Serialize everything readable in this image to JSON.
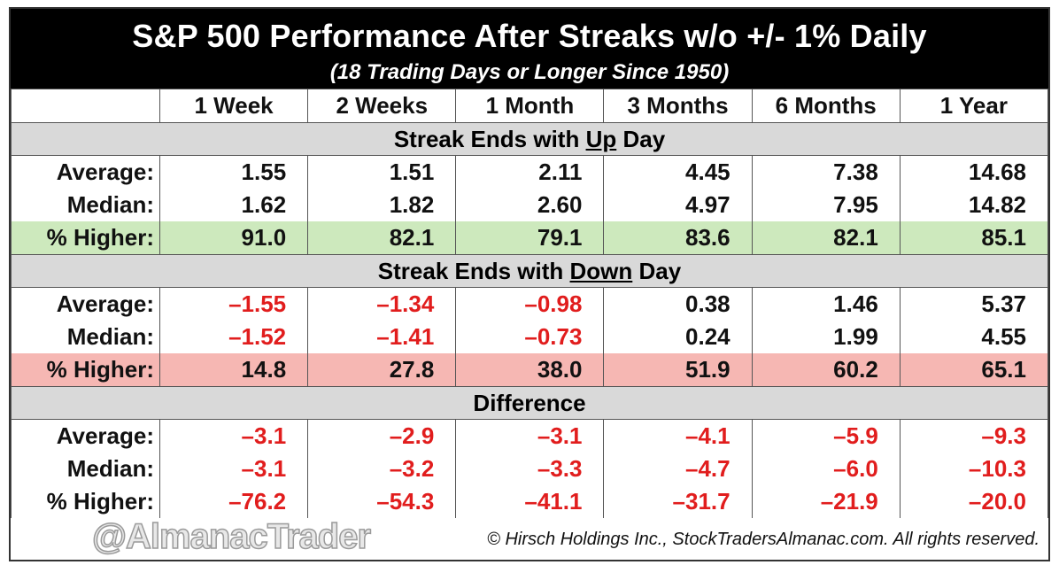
{
  "header": {
    "title": "S&P 500 Performance After Streaks w/o +/- 1% Daily",
    "subtitle": "(18 Trading Days or Longer Since 1950)"
  },
  "columns": [
    "1 Week",
    "2 Weeks",
    "1 Month",
    "3 Months",
    "6 Months",
    "1 Year"
  ],
  "sections": [
    {
      "title_pre": "Streak Ends with ",
      "title_under": "Up",
      "title_post": " Day",
      "rows": [
        {
          "label": "Average:",
          "values": [
            "1.55",
            "1.51",
            "2.11",
            "4.45",
            "7.38",
            "14.68"
          ]
        },
        {
          "label": "Median:",
          "values": [
            "1.62",
            "1.82",
            "2.60",
            "4.97",
            "7.95",
            "14.82"
          ]
        },
        {
          "label": "% Higher:",
          "values": [
            "91.0",
            "82.1",
            "79.1",
            "83.6",
            "82.1",
            "85.1"
          ]
        }
      ]
    },
    {
      "title_pre": "Streak Ends with ",
      "title_under": "Down",
      "title_post": " Day",
      "rows": [
        {
          "label": "Average:",
          "values": [
            "–1.55",
            "–1.34",
            "–0.98",
            "0.38",
            "1.46",
            "5.37"
          ]
        },
        {
          "label": "Median:",
          "values": [
            "–1.52",
            "–1.41",
            "–0.73",
            "0.24",
            "1.99",
            "4.55"
          ]
        },
        {
          "label": "% Higher:",
          "values": [
            "14.8",
            "27.8",
            "38.0",
            "51.9",
            "60.2",
            "65.1"
          ]
        }
      ]
    },
    {
      "title_pre": "Difference",
      "title_under": "",
      "title_post": "",
      "rows": [
        {
          "label": "Average:",
          "values": [
            "–3.1",
            "–2.9",
            "–3.1",
            "–4.1",
            "–5.9",
            "–9.3"
          ]
        },
        {
          "label": "Median:",
          "values": [
            "–3.1",
            "–3.2",
            "–3.3",
            "–4.7",
            "–6.0",
            "–10.3"
          ]
        },
        {
          "label": "% Higher:",
          "values": [
            "–76.2",
            "–54.3",
            "–41.1",
            "–31.7",
            "–21.9",
            "–20.0"
          ]
        }
      ]
    }
  ],
  "colors": {
    "negative": "#e11d1d",
    "green_highlight": "#cde9bd",
    "red_highlight": "#f6b7b3",
    "section_bg": "#d9d9d9"
  },
  "footer": {
    "watermark": "@AlmanacTrader",
    "copyright": "© Hirsch Holdings Inc., StockTradersAlmanac.com. All rights reserved."
  }
}
